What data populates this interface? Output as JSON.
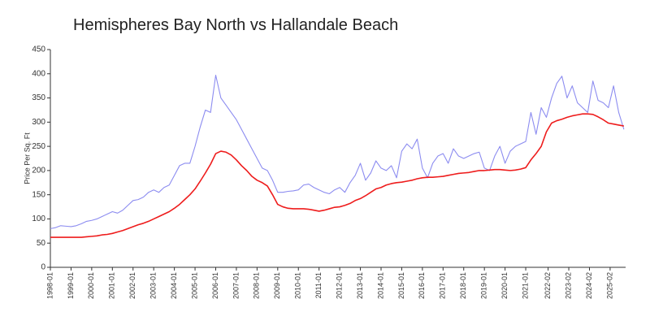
{
  "chart_data": {
    "type": "line",
    "title": "Hemispheres Bay North vs Hallandale Beach",
    "y_label": "Price Per Sq. Ft",
    "x": [
      "1998-01",
      "1998-04",
      "1998-07",
      "1998-10",
      "1999-01",
      "1999-04",
      "1999-07",
      "1999-10",
      "2000-01",
      "2000-04",
      "2000-07",
      "2000-10",
      "2001-01",
      "2001-04",
      "2001-07",
      "2001-10",
      "2002-01",
      "2002-04",
      "2002-07",
      "2002-10",
      "2003-01",
      "2003-04",
      "2003-07",
      "2003-10",
      "2004-01",
      "2004-04",
      "2004-07",
      "2004-10",
      "2005-01",
      "2005-04",
      "2005-07",
      "2005-10",
      "2006-01",
      "2006-04",
      "2006-07",
      "2006-10",
      "2007-01",
      "2007-04",
      "2007-07",
      "2007-10",
      "2008-01",
      "2008-04",
      "2008-07",
      "2008-10",
      "2009-01",
      "2009-04",
      "2009-07",
      "2009-10",
      "2010-01",
      "2010-04",
      "2010-07",
      "2010-10",
      "2011-01",
      "2011-04",
      "2011-07",
      "2011-10",
      "2012-01",
      "2012-04",
      "2012-07",
      "2012-10",
      "2013-01",
      "2013-04",
      "2013-07",
      "2013-10",
      "2014-01",
      "2014-04",
      "2014-07",
      "2014-10",
      "2015-01",
      "2015-04",
      "2015-07",
      "2015-10",
      "2016-01",
      "2016-04",
      "2016-07",
      "2016-10",
      "2017-01",
      "2017-04",
      "2017-07",
      "2017-10",
      "2018-01",
      "2018-04",
      "2018-07",
      "2018-10",
      "2019-01",
      "2019-04",
      "2019-07",
      "2019-10",
      "2020-01",
      "2020-04",
      "2020-07",
      "2020-10",
      "2021-01",
      "2021-04",
      "2021-07",
      "2021-10",
      "2022-01",
      "2022-04",
      "2022-07",
      "2022-10",
      "2023-01",
      "2023-04",
      "2023-07",
      "2023-10",
      "2024-01",
      "2024-04",
      "2024-07",
      "2024-10",
      "2025-01",
      "2025-04",
      "2025-07",
      "2025-10"
    ],
    "series": [
      {
        "color": "#8c8cf0",
        "values": [
          80,
          82,
          86,
          85,
          84,
          86,
          90,
          95,
          97,
          100,
          105,
          110,
          115,
          112,
          118,
          128,
          138,
          140,
          145,
          155,
          160,
          155,
          165,
          170,
          190,
          210,
          215,
          215,
          250,
          290,
          325,
          320,
          397,
          350,
          335,
          320,
          305,
          285,
          265,
          245,
          225,
          205,
          200,
          180,
          155,
          155,
          157,
          158,
          160,
          170,
          172,
          165,
          160,
          155,
          152,
          160,
          165,
          155,
          175,
          190,
          215,
          180,
          195,
          220,
          205,
          200,
          210,
          185,
          240,
          255,
          245,
          265,
          205,
          185,
          215,
          230,
          235,
          215,
          245,
          230,
          225,
          230,
          235,
          238,
          205,
          200,
          230,
          250,
          215,
          240,
          250,
          255,
          260,
          320,
          275,
          330,
          310,
          350,
          380,
          395,
          350,
          375,
          340,
          330,
          320,
          385,
          345,
          340,
          330,
          375,
          320,
          285
        ]
      },
      {
        "color": "#ee1c1c",
        "values": [
          62,
          62,
          62,
          62,
          62,
          62,
          62,
          63,
          64,
          65,
          67,
          68,
          70,
          73,
          76,
          80,
          84,
          88,
          91,
          95,
          100,
          105,
          110,
          115,
          122,
          130,
          140,
          150,
          162,
          178,
          195,
          213,
          235,
          240,
          238,
          232,
          222,
          210,
          200,
          188,
          180,
          175,
          168,
          150,
          130,
          125,
          122,
          121,
          121,
          121,
          120,
          118,
          116,
          118,
          121,
          124,
          125,
          128,
          132,
          138,
          142,
          148,
          155,
          162,
          165,
          170,
          173,
          175,
          176,
          178,
          180,
          183,
          185,
          186,
          186,
          187,
          188,
          190,
          192,
          194,
          195,
          196,
          198,
          200,
          200,
          201,
          202,
          202,
          201,
          200,
          201,
          203,
          206,
          222,
          235,
          250,
          280,
          298,
          303,
          306,
          310,
          313,
          315,
          317,
          317,
          316,
          311,
          305,
          298,
          296,
          294,
          292
        ]
      }
    ],
    "xlim": [
      "1998-01",
      "2025-11"
    ],
    "xticks": [
      "1998-01",
      "1999-01",
      "2000-01",
      "2001-01",
      "2002-01",
      "2003-01",
      "2004-01",
      "2005-01",
      "2006-01",
      "2007-01",
      "2008-01",
      "2009-01",
      "2010-01",
      "2011-01",
      "2012-01",
      "2013-01",
      "2014-01",
      "2015-01",
      "2016-01",
      "2017-01",
      "2018-01",
      "2019-01",
      "2020-01",
      "2021-01",
      "2022-02",
      "2023-02",
      "2024-02",
      "2025-02"
    ],
    "ylim": [
      0,
      450
    ],
    "yticks": [
      0,
      50,
      100,
      150,
      200,
      250,
      300,
      350,
      400,
      450
    ],
    "grid": false
  }
}
